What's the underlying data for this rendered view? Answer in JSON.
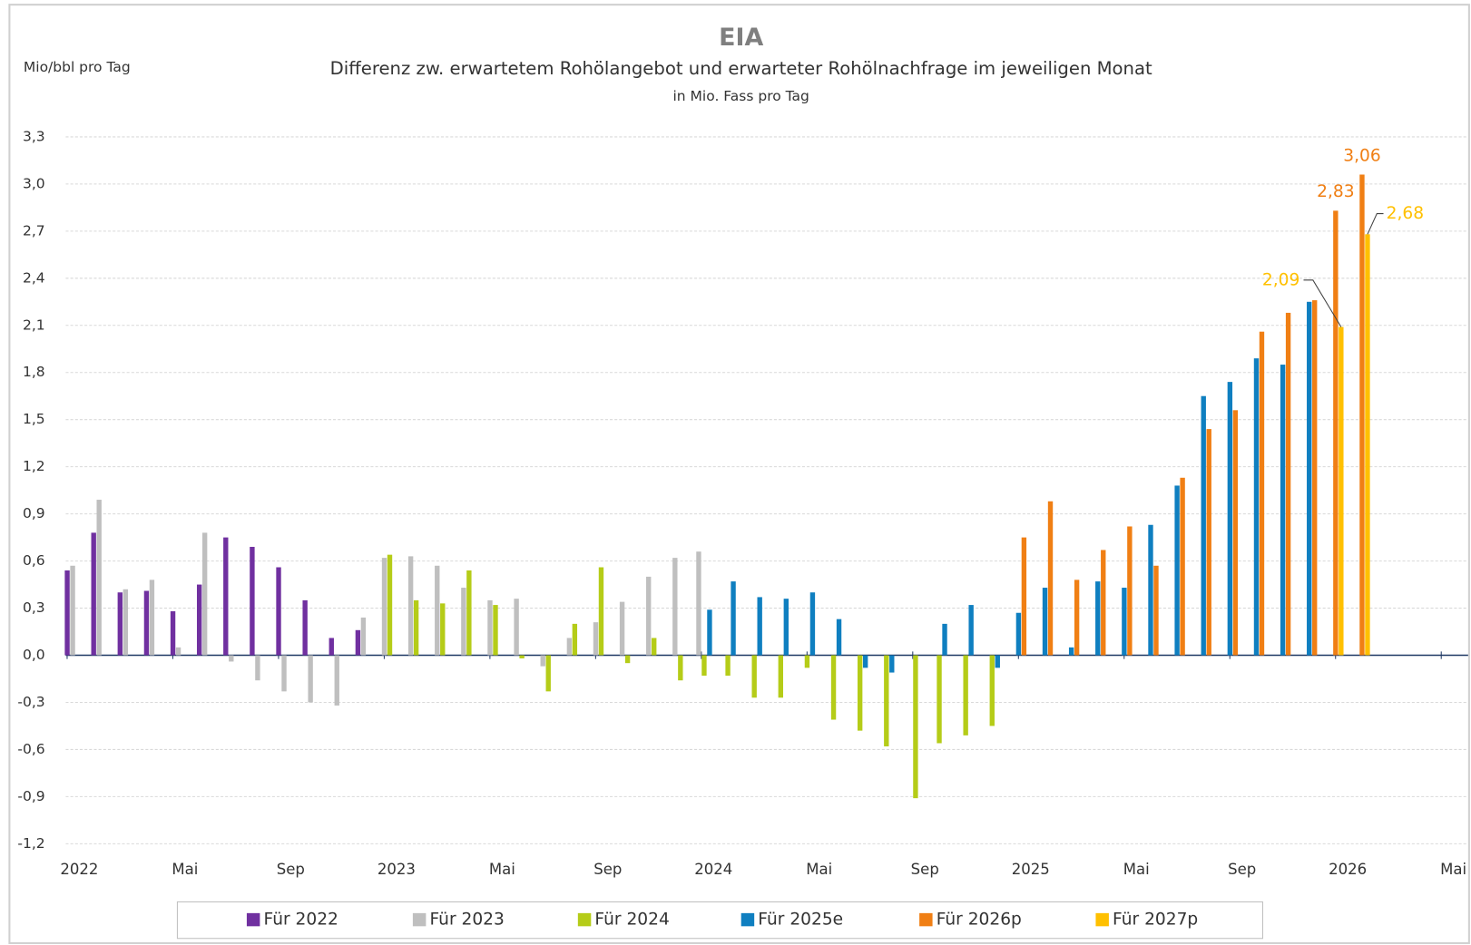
{
  "chart_data": {
    "type": "bar",
    "title": "EIA",
    "subtitle": "Differenz zw. erwartetem Rohölangebot und erwarteter Rohölnachfrage im jeweiligen Monat",
    "note": "in Mio. Fass pro Tag",
    "y_label": "Mio/bbl pro Tag",
    "categories": [
      "2022",
      null,
      null,
      null,
      "Mai",
      null,
      null,
      null,
      "Sep",
      null,
      null,
      null,
      "2023",
      null,
      null,
      null,
      "Mai",
      null,
      null,
      null,
      "Sep",
      null,
      null,
      null,
      "2024",
      null,
      null,
      null,
      "Mai",
      null,
      null,
      null,
      "Sep",
      null,
      null,
      null,
      "2025",
      null,
      null,
      null,
      "Mai",
      null,
      null,
      null,
      "Sep",
      null,
      null,
      null,
      "2026",
      null,
      null,
      null,
      "Mai"
    ],
    "ylim": [
      -1.2,
      3.3
    ],
    "yticks": [
      {
        "value": -1.2,
        "label": "-1,2"
      },
      {
        "value": -0.9,
        "label": "-0,9"
      },
      {
        "value": -0.6,
        "label": "-0,6"
      },
      {
        "value": -0.3,
        "label": "-0,3"
      },
      {
        "value": 0,
        "label": "0,0"
      },
      {
        "value": 0.3,
        "label": "0,3"
      },
      {
        "value": 0.6,
        "label": "0,6"
      },
      {
        "value": 0.9,
        "label": "0,9"
      },
      {
        "value": 1.2,
        "label": "1,2"
      },
      {
        "value": 1.5,
        "label": "1,5"
      },
      {
        "value": 1.8,
        "label": "1,8"
      },
      {
        "value": 2.1,
        "label": "2,1"
      },
      {
        "value": 2.4,
        "label": "2,4"
      },
      {
        "value": 2.7,
        "label": "2,7"
      },
      {
        "value": 3.0,
        "label": "3,0"
      },
      {
        "value": 3.3,
        "label": "3,3"
      }
    ],
    "grid": true,
    "legend": "bottom",
    "series": [
      {
        "name": "Für 2022",
        "color": "#7030a0",
        "values": [
          0.54,
          0.78,
          0.4,
          0.41,
          0.28,
          0.45,
          0.75,
          0.69,
          0.56,
          0.35,
          0.11,
          0.16,
          null,
          null,
          null,
          null,
          null,
          null,
          null,
          null,
          null,
          null,
          null,
          null,
          null,
          null,
          null,
          null,
          null,
          null,
          null,
          null,
          null,
          null,
          null,
          null,
          null,
          null,
          null,
          null,
          null,
          null,
          null,
          null,
          null,
          null,
          null,
          null,
          null,
          null,
          null,
          null,
          null
        ]
      },
      {
        "name": "Für 2023",
        "color": "#bfbfbf",
        "values": [
          0.57,
          0.99,
          0.42,
          0.48,
          0.05,
          0.78,
          -0.04,
          -0.16,
          -0.23,
          -0.3,
          -0.32,
          0.24,
          0.62,
          0.63,
          0.57,
          0.43,
          0.35,
          0.36,
          -0.07,
          0.11,
          0.21,
          0.34,
          0.5,
          0.62,
          0.66,
          null,
          null,
          null,
          null,
          null,
          null,
          null,
          null,
          null,
          null,
          null,
          null,
          null,
          null,
          null,
          null,
          null,
          null,
          null,
          null,
          null,
          null,
          null,
          null,
          null,
          null,
          null,
          null
        ]
      },
      {
        "name": "Für 2024",
        "color": "#b5cc18",
        "values": [
          null,
          null,
          null,
          null,
          null,
          null,
          null,
          null,
          null,
          null,
          null,
          null,
          0.64,
          0.35,
          0.33,
          0.54,
          0.32,
          -0.02,
          -0.23,
          0.2,
          0.56,
          -0.05,
          0.11,
          -0.16,
          -0.13,
          -0.13,
          -0.27,
          -0.27,
          -0.08,
          -0.41,
          -0.48,
          -0.58,
          -0.91,
          -0.56,
          -0.51,
          -0.45,
          null,
          null,
          null,
          null,
          null,
          null,
          null,
          null,
          null,
          null,
          null,
          null,
          null,
          null,
          null,
          null,
          null
        ]
      },
      {
        "name": "Für 2025e",
        "color": "#0f7fc0",
        "values": [
          null,
          null,
          null,
          null,
          null,
          null,
          null,
          null,
          null,
          null,
          null,
          null,
          null,
          null,
          null,
          null,
          null,
          null,
          null,
          null,
          null,
          null,
          null,
          null,
          0.29,
          0.47,
          0.37,
          0.36,
          0.4,
          0.23,
          -0.08,
          -0.11,
          null,
          0.2,
          0.32,
          -0.08,
          0.27,
          0.43,
          0.05,
          0.47,
          0.43,
          0.83,
          1.08,
          1.65,
          1.74,
          1.89,
          1.85,
          2.25,
          null,
          null,
          null,
          null,
          null
        ]
      },
      {
        "name": "Für 2026p",
        "color": "#f07f14",
        "values": [
          null,
          null,
          null,
          null,
          null,
          null,
          null,
          null,
          null,
          null,
          null,
          null,
          null,
          null,
          null,
          null,
          null,
          null,
          null,
          null,
          null,
          null,
          null,
          null,
          null,
          null,
          null,
          null,
          null,
          null,
          null,
          null,
          null,
          null,
          null,
          null,
          0.75,
          0.98,
          0.48,
          0.67,
          0.82,
          0.57,
          1.13,
          1.44,
          1.56,
          2.06,
          2.18,
          2.26,
          2.83,
          3.06,
          null,
          null,
          null
        ],
        "value_labels": [
          null,
          null,
          null,
          null,
          null,
          null,
          null,
          null,
          null,
          null,
          null,
          null,
          null,
          null,
          null,
          null,
          null,
          null,
          null,
          null,
          null,
          null,
          null,
          null,
          null,
          null,
          null,
          null,
          null,
          null,
          null,
          null,
          null,
          null,
          null,
          null,
          null,
          null,
          null,
          null,
          null,
          null,
          null,
          null,
          null,
          null,
          null,
          null,
          "2,83",
          "3,06",
          null,
          null,
          null
        ]
      },
      {
        "name": "Für 2027p",
        "color": "#ffc000",
        "values": [
          null,
          null,
          null,
          null,
          null,
          null,
          null,
          null,
          null,
          null,
          null,
          null,
          null,
          null,
          null,
          null,
          null,
          null,
          null,
          null,
          null,
          null,
          null,
          null,
          null,
          null,
          null,
          null,
          null,
          null,
          null,
          null,
          null,
          null,
          null,
          null,
          null,
          null,
          null,
          null,
          null,
          null,
          null,
          null,
          null,
          null,
          null,
          null,
          2.09,
          2.68,
          null,
          null,
          null
        ],
        "value_labels": [
          null,
          null,
          null,
          null,
          null,
          null,
          null,
          null,
          null,
          null,
          null,
          null,
          null,
          null,
          null,
          null,
          null,
          null,
          null,
          null,
          null,
          null,
          null,
          null,
          null,
          null,
          null,
          null,
          null,
          null,
          null,
          null,
          null,
          null,
          null,
          null,
          null,
          null,
          null,
          null,
          null,
          null,
          null,
          null,
          null,
          null,
          null,
          null,
          "2,09",
          "2,68",
          null,
          null,
          null
        ]
      }
    ]
  }
}
